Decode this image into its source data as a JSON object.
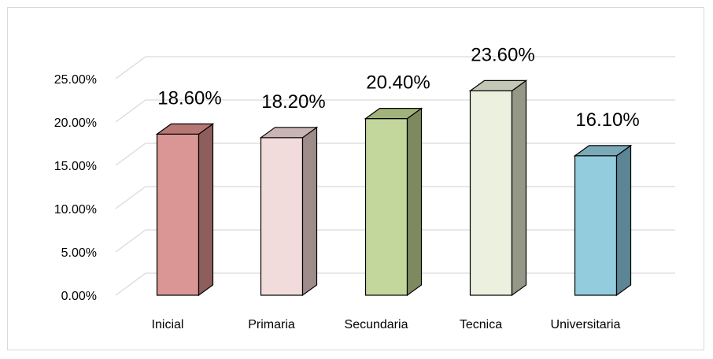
{
  "chart_data": {
    "type": "bar",
    "style": "3d-column",
    "categories": [
      "Inicial",
      "Primaria",
      "Secundaria",
      "Tecnica",
      "Universitaria"
    ],
    "values": [
      18.6,
      18.2,
      20.4,
      23.6,
      16.1
    ],
    "value_labels": [
      "18.60%",
      "18.20%",
      "20.40%",
      "23.60%",
      "16.10%"
    ],
    "yticks": [
      0,
      5,
      10,
      15,
      20,
      25
    ],
    "ytick_labels": [
      "0.00%",
      "5.00%",
      "10.00%",
      "15.00%",
      "20.00%",
      "25.00%"
    ],
    "ylim": [
      0,
      25
    ],
    "grid": true,
    "legend": "none",
    "title": "",
    "xlabel": "",
    "ylabel": "",
    "colors": {
      "front": [
        "#d99694",
        "#f2dcdb",
        "#c3d69b",
        "#ebf1de",
        "#93cddd"
      ],
      "side": [
        "#8e5e5c",
        "#9e8c8b",
        "#7d8a5f",
        "#959887",
        "#5c8596"
      ],
      "top": [
        "#b77775",
        "#c8b5b4",
        "#a1b27b",
        "#c3c8b6",
        "#7aaab8"
      ],
      "gridline": "#d9d9d9",
      "outline": "#000000"
    }
  }
}
